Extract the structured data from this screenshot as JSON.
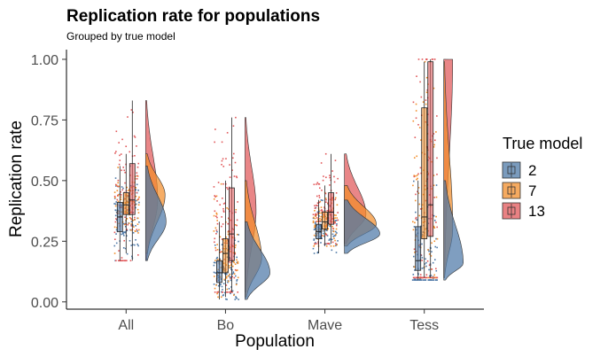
{
  "chart_data": {
    "type": "raincloud",
    "title": "Replication rate for populations",
    "subtitle": "Grouped by true model",
    "xlabel": "Population",
    "ylabel": "Replication rate",
    "categories": [
      "All",
      "Bo",
      "Mave",
      "Tess"
    ],
    "yticks": [
      "0.00",
      "0.25",
      "0.50",
      "0.75",
      "1.00"
    ],
    "ytick_values": [
      0,
      0.25,
      0.5,
      0.75,
      1.0
    ],
    "ylim": [
      -0.03,
      1.04
    ],
    "grid": false,
    "legend": {
      "title": "True model",
      "placement": "right",
      "entries": [
        "2",
        "7",
        "13"
      ]
    },
    "series": [
      {
        "name": "2",
        "color": "#4e79a7",
        "stats": {
          "All": {
            "min": 0.17,
            "q1": 0.29,
            "median": 0.35,
            "q3": 0.41,
            "max": 0.56,
            "density_peak": 0.33
          },
          "Bo": {
            "min": 0.01,
            "q1": 0.08,
            "median": 0.12,
            "q3": 0.17,
            "max": 0.33,
            "density_peak": 0.12
          },
          "Mave": {
            "min": 0.2,
            "q1": 0.26,
            "median": 0.29,
            "q3": 0.32,
            "max": 0.42,
            "density_peak": 0.28
          },
          "Tess": {
            "min": 0.09,
            "q1": 0.13,
            "median": 0.17,
            "q3": 0.31,
            "max": 0.5,
            "density_peak": 0.16
          }
        }
      },
      {
        "name": "7",
        "color": "#f28e2b",
        "stats": {
          "All": {
            "min": 0.2,
            "q1": 0.36,
            "median": 0.4,
            "q3": 0.45,
            "max": 0.61,
            "density_peak": 0.44
          },
          "Bo": {
            "min": 0.02,
            "q1": 0.12,
            "median": 0.2,
            "q3": 0.26,
            "max": 0.5,
            "density_peak": 0.18
          },
          "Mave": {
            "min": 0.23,
            "q1": 0.3,
            "median": 0.33,
            "q3": 0.37,
            "max": 0.48,
            "density_peak": 0.32
          },
          "Tess": {
            "min": 0.1,
            "q1": 0.26,
            "median": 0.35,
            "q3": 0.8,
            "max": 0.99,
            "density_peak": 0.3
          }
        }
      },
      {
        "name": "13",
        "color": "#e15759",
        "stats": {
          "All": {
            "min": 0.17,
            "q1": 0.36,
            "median": 0.42,
            "q3": 0.57,
            "max": 0.83,
            "density_peak": 0.42
          },
          "Bo": {
            "min": 0.04,
            "q1": 0.17,
            "median": 0.28,
            "q3": 0.47,
            "max": 0.76,
            "density_peak": 0.38
          },
          "Mave": {
            "min": 0.24,
            "q1": 0.32,
            "median": 0.37,
            "q3": 0.45,
            "max": 0.61,
            "density_peak": 0.36
          },
          "Tess": {
            "min": 0.1,
            "q1": 0.27,
            "median": 0.4,
            "q3": 0.99,
            "max": 1.0,
            "density_peak": 1.0
          }
        }
      }
    ]
  }
}
